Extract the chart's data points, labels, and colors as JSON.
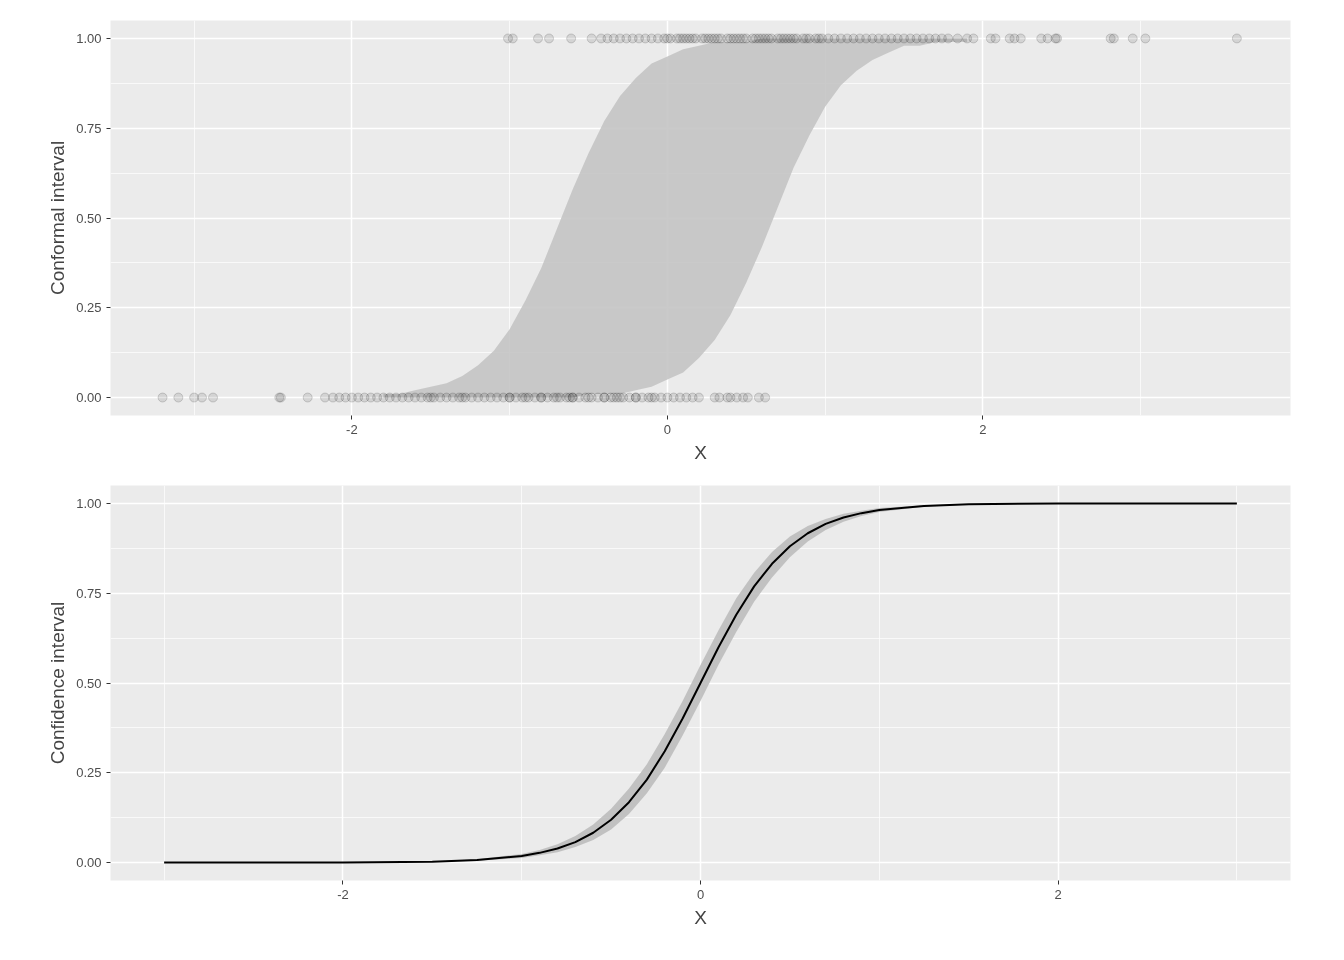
{
  "chart_data": [
    {
      "type": "scatter",
      "xlabel": "X",
      "ylabel": "Conformal interval",
      "xlim": [
        -3.53,
        3.95
      ],
      "ylim": [
        -0.05,
        1.05
      ],
      "xticks": [
        -2,
        0,
        2
      ],
      "yticks": [
        {
          "value": 0,
          "label": "0.00"
        },
        {
          "value": 0.25,
          "label": "0.25"
        },
        {
          "value": 0.5,
          "label": "0.50"
        },
        {
          "value": 0.75,
          "label": "0.75"
        },
        {
          "value": 1,
          "label": "1.00"
        }
      ],
      "grid": true,
      "series": [
        {
          "type": "line",
          "color": "#c4c4c4",
          "x": [
            -1.8,
            -1.7,
            -1.6,
            -1.5,
            -1.4,
            -1.3,
            -1.2,
            -1.1,
            -1.0,
            -0.9,
            -0.8,
            -0.7,
            -0.6,
            -0.5,
            -0.4,
            -0.3,
            -0.2,
            -0.1,
            0,
            0.1,
            0.2,
            0.3,
            0.4,
            0.5,
            0.6,
            0.7,
            0.8,
            0.9,
            1.0,
            1.1,
            1.2,
            1.3,
            1.4,
            1.5,
            1.6,
            1.7,
            1.8,
            1.9
          ],
          "lower": [
            0,
            0,
            0,
            0,
            0,
            0,
            0,
            0,
            0,
            0,
            0,
            0,
            0,
            0.01,
            0.01,
            0.01,
            0.02,
            0.03,
            0.05,
            0.07,
            0.11,
            0.16,
            0.23,
            0.32,
            0.42,
            0.53,
            0.64,
            0.73,
            0.81,
            0.87,
            0.91,
            0.94,
            0.96,
            0.98,
            0.98,
            0.99,
            0.99,
            0.99
          ],
          "upper": [
            0.01,
            0.01,
            0.02,
            0.03,
            0.04,
            0.06,
            0.09,
            0.13,
            0.19,
            0.27,
            0.36,
            0.47,
            0.58,
            0.68,
            0.77,
            0.84,
            0.89,
            0.93,
            0.95,
            0.97,
            0.98,
            0.99,
            0.99,
            0.99,
            1,
            1,
            1,
            1,
            1,
            1,
            1,
            1,
            1,
            1,
            1,
            1,
            1,
            1
          ],
          "values": [
            null,
            null,
            null,
            null,
            null,
            null,
            null,
            null,
            null,
            null,
            null,
            null,
            null,
            null,
            null,
            null,
            null,
            null,
            null,
            null,
            null,
            null,
            null,
            null,
            null,
            null,
            null,
            null,
            null,
            null,
            null,
            null,
            null,
            null,
            null,
            null,
            null,
            null
          ]
        },
        {
          "marker": "circle",
          "color": "#000000",
          "x": [
            -1.01,
            -0.98,
            -0.82,
            -0.75,
            -0.61,
            -0.48,
            -0.42,
            -0.38,
            -0.34,
            -0.3,
            -0.26,
            -0.22,
            -0.18,
            -0.14,
            -0.1,
            -0.06,
            -0.02,
            0.02,
            0.06,
            0.1,
            0.14,
            0.18,
            0.22,
            0.26,
            0.3,
            0.34,
            0.38,
            0.42,
            0.46,
            0.5,
            0.54,
            0.58,
            0.62,
            0.66,
            0.7,
            0.74,
            0.78,
            0.82,
            0.86,
            0.9,
            0.94,
            0.98,
            1.02,
            1.06,
            1.1,
            1.14,
            1.18,
            1.22,
            1.26,
            1.3,
            1.34,
            1.38,
            1.42,
            1.46,
            1.5,
            1.54,
            1.58,
            1.62,
            1.66,
            1.7,
            1.74,
            1.78,
            0.0,
            0.08,
            0.16,
            0.24,
            0.32,
            0.4,
            0.48,
            0.56,
            0.64,
            0.72,
            0.8,
            0.88,
            0.96,
            0.12,
            0.28,
            0.44,
            0.6,
            0.76,
            1.84,
            1.9,
            1.94,
            2.05,
            2.08,
            2.17,
            2.2,
            2.24,
            2.37,
            2.41,
            2.46,
            2.47,
            2.81,
            2.83,
            2.95,
            3.03,
            3.61
          ],
          "values": [
            1,
            1,
            1,
            1,
            1,
            1,
            1,
            1,
            1,
            1,
            1,
            1,
            1,
            1,
            1,
            1,
            1,
            1,
            1,
            1,
            1,
            1,
            1,
            1,
            1,
            1,
            1,
            1,
            1,
            1,
            1,
            1,
            1,
            1,
            1,
            1,
            1,
            1,
            1,
            1,
            1,
            1,
            1,
            1,
            1,
            1,
            1,
            1,
            1,
            1,
            1,
            1,
            1,
            1,
            1,
            1,
            1,
            1,
            1,
            1,
            1,
            1,
            1,
            1,
            1,
            1,
            1,
            1,
            1,
            1,
            1,
            1,
            1,
            1,
            1,
            1,
            1,
            1,
            1,
            1,
            1,
            1,
            1,
            1,
            1,
            1,
            1,
            1,
            1,
            1,
            1,
            1,
            1,
            1,
            1,
            1,
            1
          ]
        },
        {
          "marker": "circle",
          "color": "#000000",
          "x": [
            -3.2,
            -3.1,
            -3.0,
            -2.95,
            -2.88,
            -2.46,
            -2.45,
            -2.28,
            -2.17,
            -2.12,
            -2.08,
            -2.04,
            -2.0,
            -1.96,
            -1.92,
            -1.88,
            -1.84,
            -1.8,
            -1.76,
            -1.72,
            -1.68,
            -1.64,
            -1.6,
            -1.56,
            -1.52,
            -1.48,
            -1.44,
            -1.4,
            -1.36,
            -1.32,
            -1.28,
            -1.24,
            -1.2,
            -1.16,
            -1.12,
            -1.08,
            -1.04,
            -1.0,
            -0.96,
            -0.92,
            -0.88,
            -0.84,
            -0.8,
            -0.76,
            -0.72,
            -0.68,
            -0.64,
            -0.6,
            -0.56,
            -0.52,
            -0.48,
            -0.44,
            -0.4,
            -0.36,
            -0.32,
            -0.28,
            -0.24,
            -0.2,
            -0.16,
            -0.12,
            -0.08,
            -0.04,
            0.0,
            0.04,
            0.08,
            0.12,
            0.16,
            0.2,
            -1.0,
            -0.9,
            -0.8,
            -0.7,
            -0.6,
            -0.5,
            -0.4,
            -0.3,
            -0.2,
            -0.1,
            -0.62,
            -0.34,
            -1.3,
            -1.5,
            0.3,
            0.33,
            0.38,
            0.4,
            0.44,
            0.48,
            0.51,
            0.58,
            0.62
          ],
          "values": [
            0,
            0,
            0,
            0,
            0,
            0,
            0,
            0,
            0,
            0,
            0,
            0,
            0,
            0,
            0,
            0,
            0,
            0,
            0,
            0,
            0,
            0,
            0,
            0,
            0,
            0,
            0,
            0,
            0,
            0,
            0,
            0,
            0,
            0,
            0,
            0,
            0,
            0,
            0,
            0,
            0,
            0,
            0,
            0,
            0,
            0,
            0,
            0,
            0,
            0,
            0,
            0,
            0,
            0,
            0,
            0,
            0,
            0,
            0,
            0,
            0,
            0,
            0,
            0,
            0,
            0,
            0,
            0,
            0,
            0,
            0,
            0,
            0,
            0,
            0,
            0,
            0,
            0,
            0,
            0,
            0,
            0,
            0,
            0,
            0,
            0,
            0,
            0,
            0,
            0,
            0
          ]
        }
      ]
    },
    {
      "type": "line",
      "xlabel": "X",
      "ylabel": "Confidence interval",
      "xlim": [
        -3.3,
        3.3
      ],
      "ylim": [
        -0.05,
        1.05
      ],
      "xticks": [
        -2,
        0,
        2
      ],
      "yticks": [
        {
          "value": 0,
          "label": "0.00"
        },
        {
          "value": 0.25,
          "label": "0.25"
        },
        {
          "value": 0.5,
          "label": "0.50"
        },
        {
          "value": 0.75,
          "label": "0.75"
        },
        {
          "value": 1,
          "label": "1.00"
        }
      ],
      "grid": true,
      "marker": "none",
      "line_style": "solid",
      "series": [
        {
          "color": "#000000",
          "x": [
            -3,
            -2.5,
            -2,
            -1.5,
            -1.25,
            -1,
            -0.9,
            -0.8,
            -0.7,
            -0.6,
            -0.5,
            -0.4,
            -0.3,
            -0.2,
            -0.1,
            0,
            0.1,
            0.2,
            0.3,
            0.4,
            0.5,
            0.6,
            0.7,
            0.8,
            0.9,
            1,
            1.25,
            1.5,
            2,
            2.5,
            3
          ],
          "values": [
            0,
            0,
            0,
            0.002,
            0.007,
            0.018,
            0.027,
            0.039,
            0.057,
            0.083,
            0.119,
            0.168,
            0.231,
            0.31,
            0.401,
            0.5,
            0.599,
            0.69,
            0.769,
            0.832,
            0.881,
            0.917,
            0.943,
            0.961,
            0.973,
            0.982,
            0.993,
            0.998,
            1,
            1,
            1
          ],
          "lower": [
            0,
            0,
            0,
            0.002,
            0.005,
            0.013,
            0.02,
            0.029,
            0.043,
            0.063,
            0.092,
            0.135,
            0.193,
            0.264,
            0.354,
            0.45,
            0.55,
            0.642,
            0.726,
            0.794,
            0.85,
            0.894,
            0.926,
            0.949,
            0.965,
            0.976,
            0.991,
            0.997,
            1,
            1,
            1
          ],
          "upper": [
            0,
            0,
            0,
            0.003,
            0.009,
            0.024,
            0.035,
            0.051,
            0.074,
            0.106,
            0.15,
            0.206,
            0.274,
            0.358,
            0.45,
            0.55,
            0.646,
            0.736,
            0.807,
            0.865,
            0.908,
            0.937,
            0.957,
            0.971,
            0.98,
            0.987,
            0.995,
            0.998,
            1,
            1,
            1
          ]
        }
      ]
    }
  ]
}
